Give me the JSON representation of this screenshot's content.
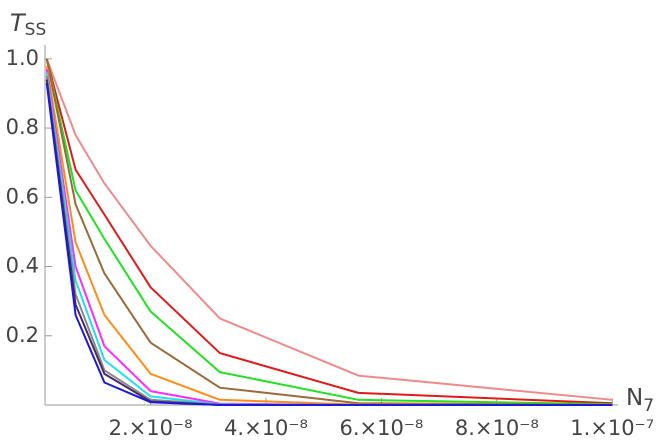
{
  "chart_data": {
    "type": "line",
    "y_label": "T",
    "y_label_subscript": "SS",
    "x_label": "N",
    "x_label_subscript": "7",
    "x": [
      2e-09,
      7e-09,
      1.2e-08,
      2e-08,
      3.2e-08,
      5.6e-08,
      1e-07
    ],
    "series": [
      {
        "color": "#f08a8a",
        "values": [
          1.0,
          0.78,
          0.64,
          0.46,
          0.25,
          0.085,
          0.015
        ]
      },
      {
        "color": "#e01a1a",
        "values": [
          1.0,
          0.68,
          0.55,
          0.34,
          0.15,
          0.035,
          0.005
        ]
      },
      {
        "color": "#22e022",
        "values": [
          1.0,
          0.62,
          0.48,
          0.27,
          0.095,
          0.015,
          0.002
        ]
      },
      {
        "color": "#9a6a3a",
        "values": [
          1.0,
          0.58,
          0.38,
          0.18,
          0.05,
          0.005,
          0
        ]
      },
      {
        "color": "#ff8c1a",
        "values": [
          0.98,
          0.47,
          0.26,
          0.09,
          0.015,
          0.001,
          0
        ]
      },
      {
        "color": "#ff2aff",
        "values": [
          0.97,
          0.4,
          0.17,
          0.04,
          0.004,
          0,
          0
        ]
      },
      {
        "color": "#22e0e8",
        "values": [
          0.96,
          0.36,
          0.13,
          0.025,
          0.002,
          0,
          0
        ]
      },
      {
        "color": "#8a8a8a",
        "values": [
          0.95,
          0.32,
          0.1,
          0.015,
          0.001,
          0,
          0
        ]
      },
      {
        "color": "#4a2a6a",
        "values": [
          0.94,
          0.29,
          0.09,
          0.01,
          0,
          0,
          0
        ]
      },
      {
        "color": "#1a1ad8",
        "values": [
          0.93,
          0.26,
          0.065,
          0.008,
          0,
          0,
          0
        ]
      }
    ],
    "xlim": [
      1.7e-09,
      1.01e-07
    ],
    "ylim": [
      0,
      1.04
    ],
    "xticks": [
      {
        "value": 2e-08,
        "label": "2.×10⁻⁸"
      },
      {
        "value": 4e-08,
        "label": "4.×10⁻⁸"
      },
      {
        "value": 6e-08,
        "label": "6.×10⁻⁸"
      },
      {
        "value": 8e-08,
        "label": "8.×10⁻⁸"
      },
      {
        "value": 1e-07,
        "label": "1.×10⁻⁷"
      }
    ],
    "yticks": [
      0.2,
      0.4,
      0.6,
      0.8,
      {
        "value": 1,
        "label": "1.0"
      }
    ]
  }
}
